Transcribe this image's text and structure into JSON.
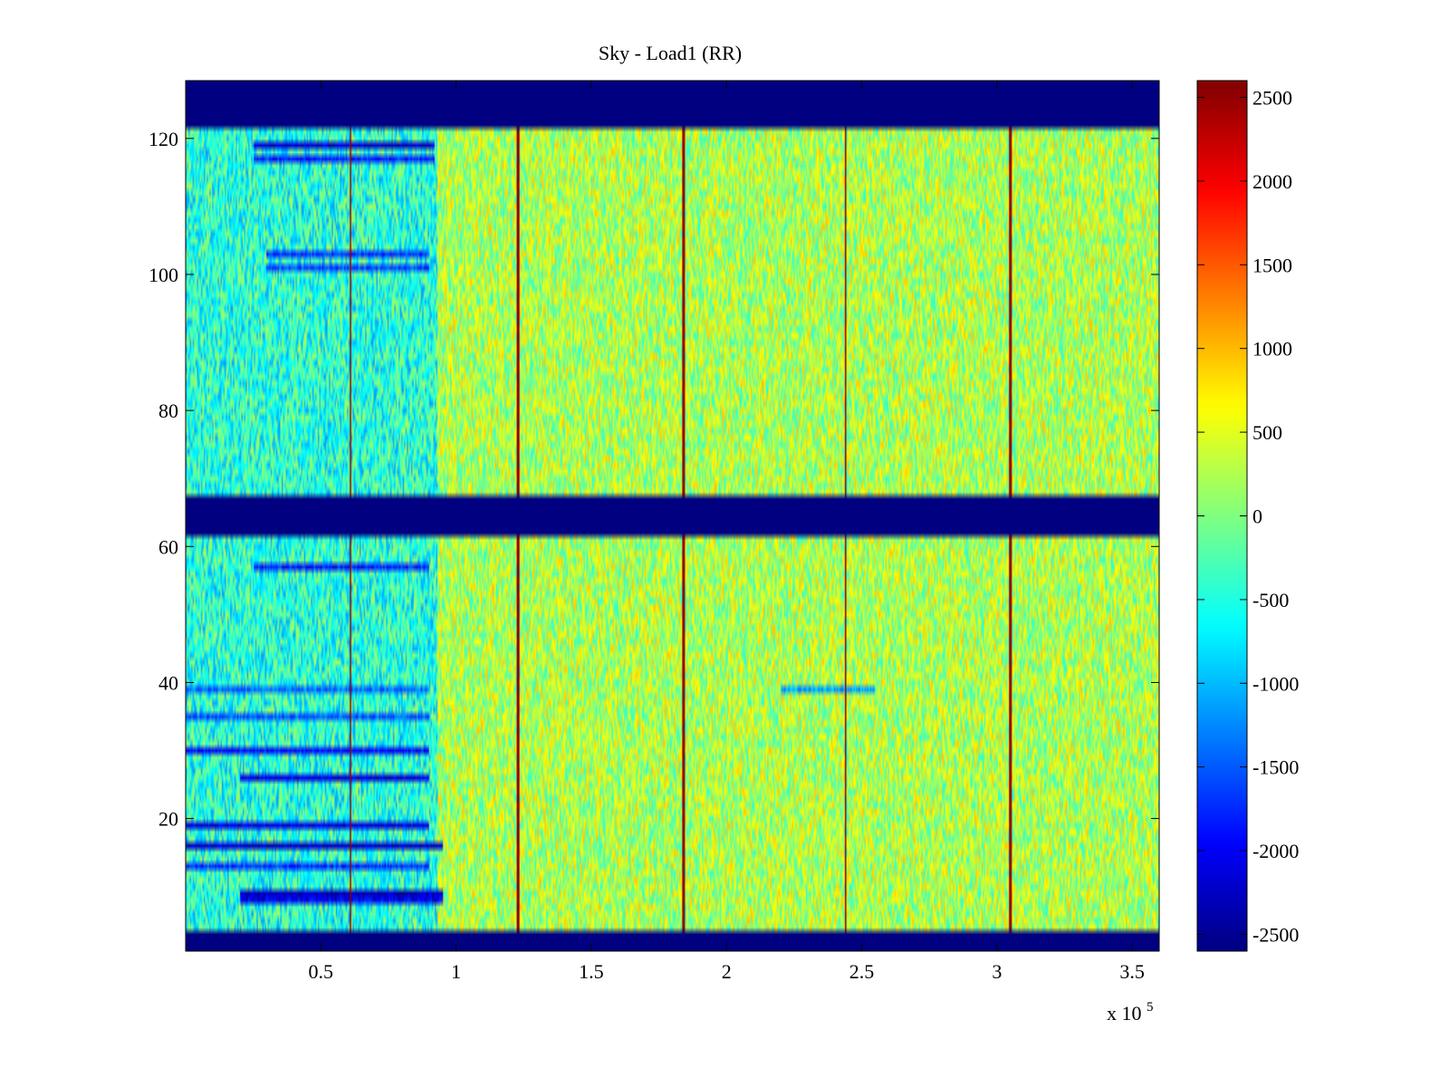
{
  "chart_data": {
    "type": "heatmap",
    "title": "Sky - Load1 (RR)",
    "xlabel": "",
    "ylabel": "",
    "x_multiplier_label": {
      "base": "x 10",
      "exponent": "5"
    },
    "xlim": [
      0.0,
      3.6
    ],
    "ylim": [
      0.5,
      128.5
    ],
    "x_ticks": [
      0.5,
      1,
      1.5,
      2,
      2.5,
      3,
      3.5
    ],
    "x_tick_labels": [
      "0.5",
      "1",
      "1.5",
      "2",
      "2.5",
      "3",
      "3.5"
    ],
    "y_ticks": [
      20,
      40,
      60,
      80,
      100,
      120
    ],
    "y_tick_labels": [
      "20",
      "40",
      "60",
      "80",
      "100",
      "120"
    ],
    "colormap": "jet",
    "clim": [
      -2600,
      2600
    ],
    "colorbar": {
      "ticks": [
        2500,
        2000,
        1500,
        1000,
        500,
        0,
        -500,
        -1000,
        -1500,
        -2000,
        -2500
      ],
      "tick_labels": [
        "2500",
        "2000",
        "1500",
        "1000",
        "500",
        "0",
        "-500",
        "-1000",
        "-1500",
        "-2000",
        "-2500"
      ]
    },
    "background_value": 250,
    "noise_amplitude": 700,
    "masked_rows": [
      {
        "from": 0.5,
        "to": 3.5,
        "value": -2600
      },
      {
        "from": 61.5,
        "to": 67.5,
        "value": -2600
      },
      {
        "from": 121.5,
        "to": 128.5,
        "value": -2600
      }
    ],
    "vertical_spikes": [
      {
        "x": 0.61,
        "value": 2500
      },
      {
        "x": 1.23,
        "value": 2500
      },
      {
        "x": 1.84,
        "value": 2500
      },
      {
        "x": 2.44,
        "value": 2500
      },
      {
        "x": 3.05,
        "value": 2500
      }
    ],
    "low_region": {
      "x_from": 0.0,
      "x_to": 0.93,
      "value": -700
    },
    "low_rows": [
      {
        "y": 119,
        "value": -2200,
        "x_from": 0.25,
        "x_to": 0.92
      },
      {
        "y": 117,
        "value": -1800,
        "x_from": 0.25,
        "x_to": 0.92
      },
      {
        "y": 103,
        "value": -1700,
        "x_from": 0.3,
        "x_to": 0.9
      },
      {
        "y": 101,
        "value": -1600,
        "x_from": 0.3,
        "x_to": 0.9
      },
      {
        "y": 57,
        "value": -1800,
        "x_from": 0.25,
        "x_to": 0.9
      },
      {
        "y": 39,
        "value": -1400,
        "x_from": 0.0,
        "x_to": 0.9
      },
      {
        "y": 35,
        "value": -1500,
        "x_from": 0.0,
        "x_to": 0.9
      },
      {
        "y": 30,
        "value": -1900,
        "x_from": 0.0,
        "x_to": 0.9
      },
      {
        "y": 26,
        "value": -2100,
        "x_from": 0.2,
        "x_to": 0.9
      },
      {
        "y": 19,
        "value": -2100,
        "x_from": 0.0,
        "x_to": 0.9
      },
      {
        "y": 16,
        "value": -2200,
        "x_from": 0.0,
        "x_to": 0.95
      },
      {
        "y": 13,
        "value": -1700,
        "x_from": 0.0,
        "x_to": 0.9
      },
      {
        "y": 9,
        "value": -2300,
        "x_from": 0.2,
        "x_to": 0.95
      },
      {
        "y": 8,
        "value": -2000,
        "x_from": 0.2,
        "x_to": 0.95
      },
      {
        "y": 39,
        "value": -1100,
        "x_from": 2.2,
        "x_to": 2.55
      }
    ]
  }
}
